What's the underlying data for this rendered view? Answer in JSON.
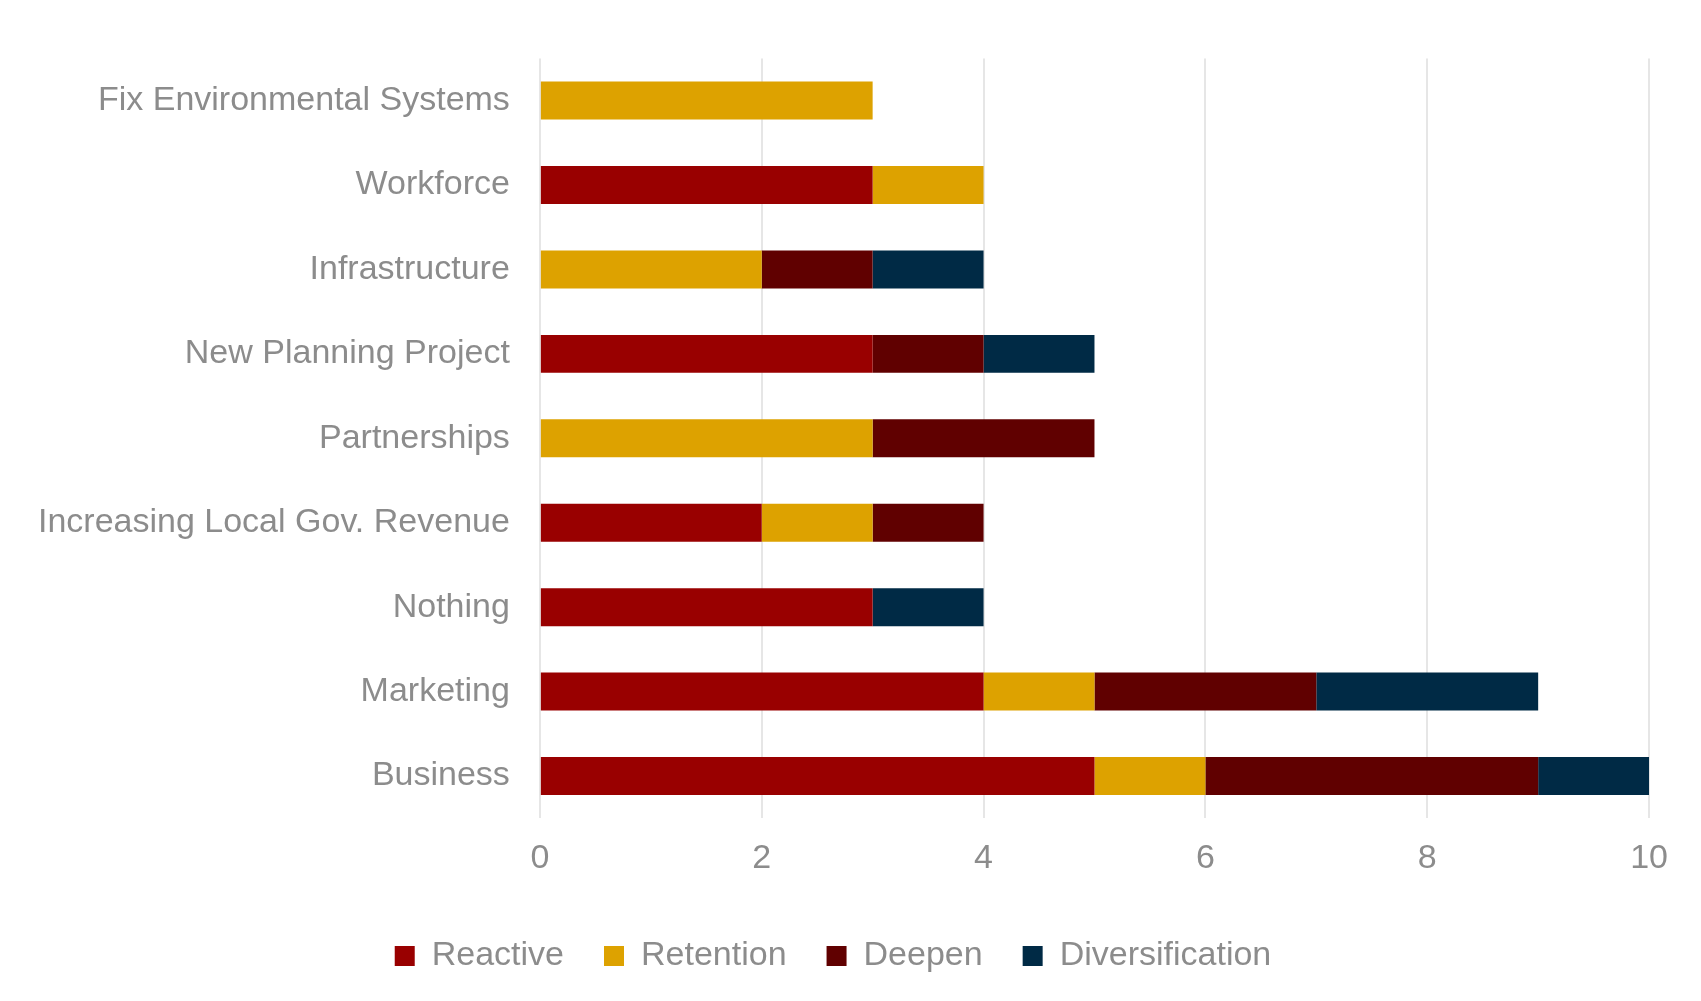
{
  "chart_data": {
    "type": "bar",
    "orientation": "horizontal",
    "stacked": true,
    "categories": [
      "Fix Environmental Systems",
      "Workforce",
      "Infrastructure",
      "New Planning Project",
      "Partnerships",
      "Increasing Local Gov. Revenue",
      "Nothing",
      "Marketing",
      "Business"
    ],
    "series": [
      {
        "name": "Reactive",
        "color": "#990000",
        "values": [
          0,
          3,
          0,
          3,
          0,
          2,
          3,
          4,
          5
        ]
      },
      {
        "name": "Retention",
        "color": "#dda200",
        "values": [
          3,
          1,
          2,
          0,
          3,
          1,
          0,
          1,
          1
        ]
      },
      {
        "name": "Deepen",
        "color": "#600000",
        "values": [
          0,
          0,
          1,
          1,
          2,
          1,
          0,
          2,
          3
        ]
      },
      {
        "name": "Diversification",
        "color": "#002a45",
        "values": [
          0,
          0,
          1,
          1,
          0,
          0,
          1,
          2,
          1
        ]
      }
    ],
    "xlim": [
      0,
      10
    ],
    "xticks": [
      0,
      2,
      4,
      6,
      8,
      10
    ],
    "grid": "x",
    "legend": "bottom"
  }
}
